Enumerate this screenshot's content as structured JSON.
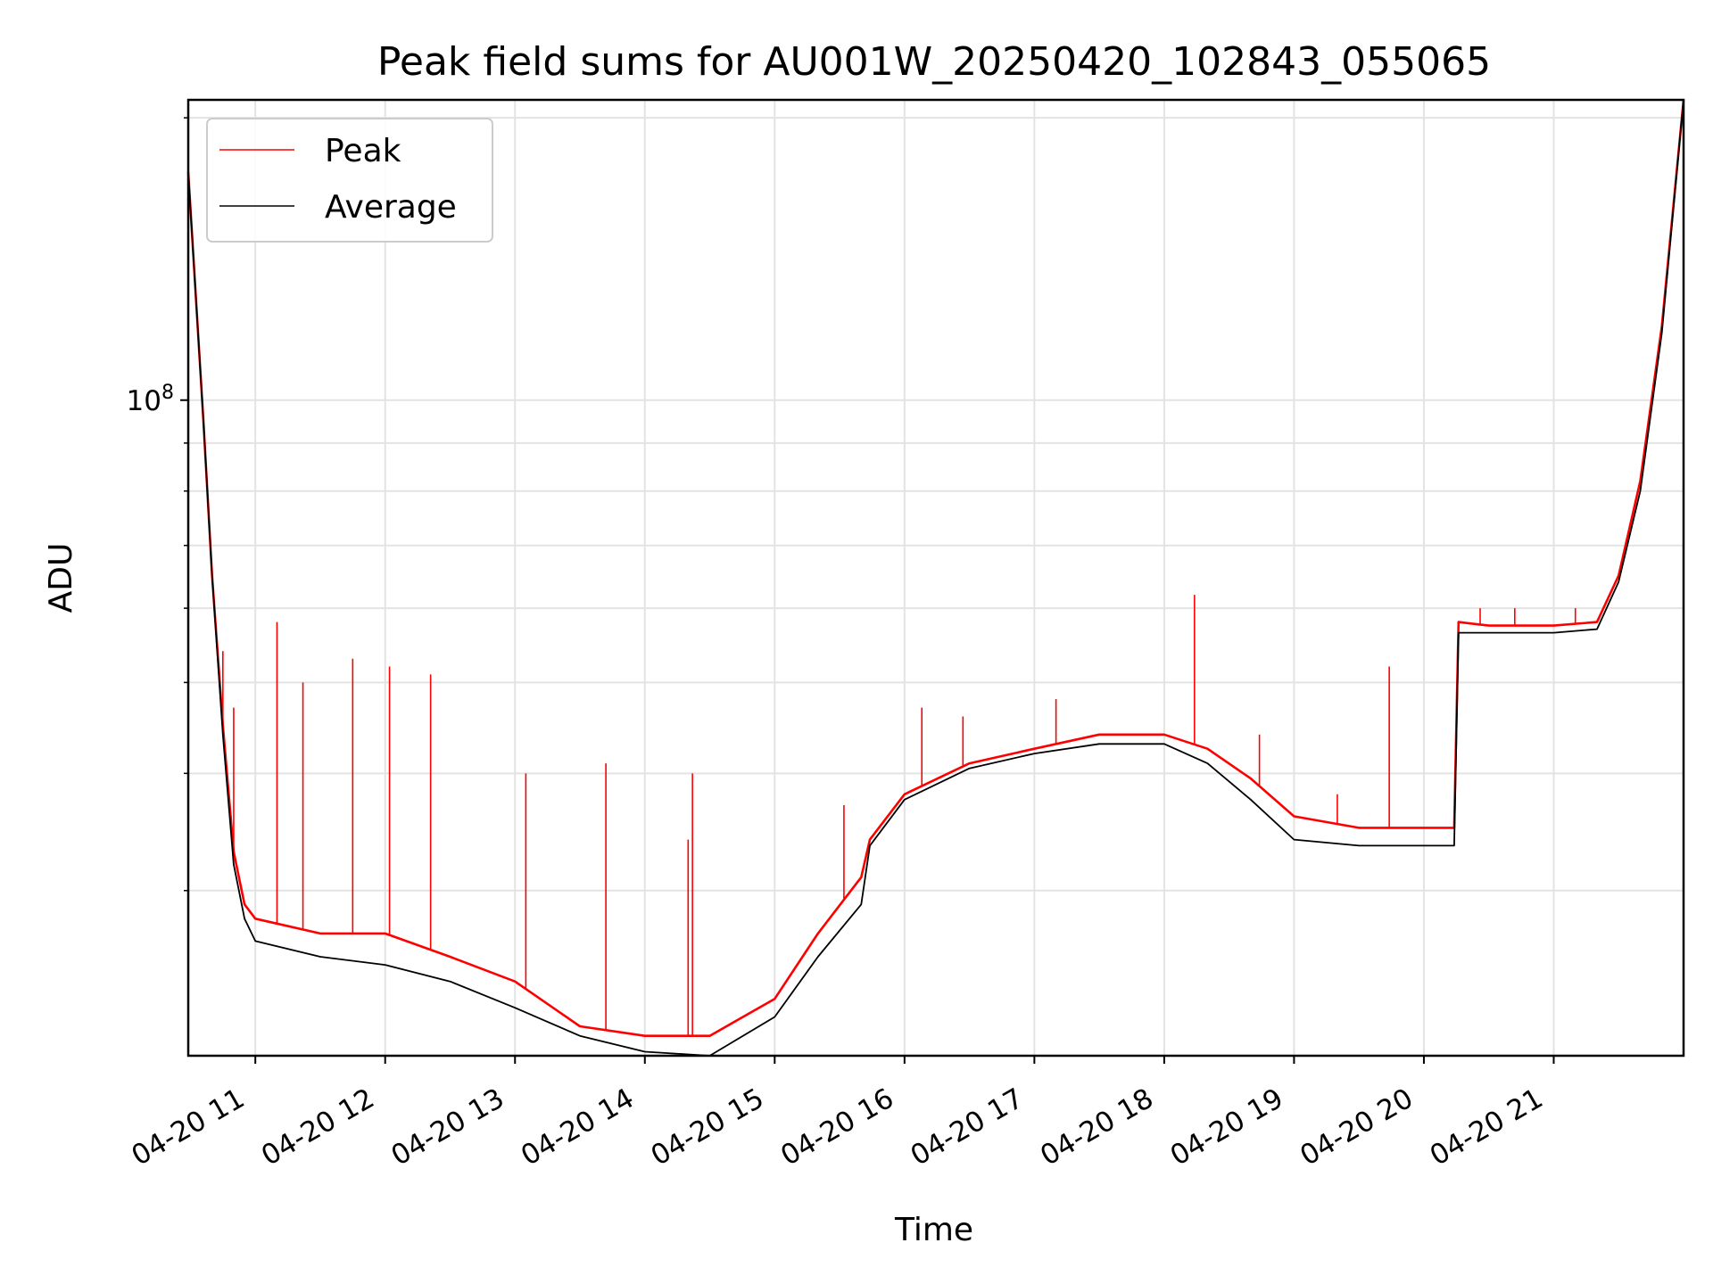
{
  "chart_data": {
    "type": "line",
    "title": "Peak field sums for AU001W_20250420_102843_055065",
    "xlabel": "Time",
    "ylabel": "ADU",
    "yscale": "log",
    "grid": true,
    "legend_position": "top-left",
    "xlim": [
      "2025-04-20 10:29",
      "2025-04-20 22:00"
    ],
    "ylim": [
      20000000,
      209000000
    ],
    "x_ticks": [
      "04-20 11",
      "04-20 12",
      "04-20 13",
      "04-20 14",
      "04-20 15",
      "04-20 16",
      "04-20 17",
      "04-20 18",
      "04-20 19",
      "04-20 20",
      "04-20 21"
    ],
    "y_ticks": [
      {
        "value": 100000000,
        "base": "10",
        "exponent": "8"
      }
    ],
    "series": [
      {
        "name": "Peak",
        "color": "#ff0000",
        "x": [
          "2025-04-20 10:29",
          "2025-04-20 10:36",
          "2025-04-20 10:40",
          "2025-04-20 10:45",
          "2025-04-20 10:50",
          "2025-04-20 10:55",
          "2025-04-20 11:00",
          "2025-04-20 11:30",
          "2025-04-20 12:00",
          "2025-04-20 12:30",
          "2025-04-20 13:00",
          "2025-04-20 13:30",
          "2025-04-20 14:00",
          "2025-04-20 14:30",
          "2025-04-20 15:00",
          "2025-04-20 15:20",
          "2025-04-20 15:40",
          "2025-04-20 15:44",
          "2025-04-20 16:00",
          "2025-04-20 16:30",
          "2025-04-20 17:00",
          "2025-04-20 17:30",
          "2025-04-20 18:00",
          "2025-04-20 18:20",
          "2025-04-20 18:40",
          "2025-04-20 19:00",
          "2025-04-20 19:30",
          "2025-04-20 20:14",
          "2025-04-20 20:16",
          "2025-04-20 20:30",
          "2025-04-20 21:00",
          "2025-04-20 21:20",
          "2025-04-20 21:30",
          "2025-04-20 21:40",
          "2025-04-20 21:50",
          "2025-04-20 22:00"
        ],
        "y": [
          175000000,
          95000000,
          65000000,
          45000000,
          33000000,
          29000000,
          28000000,
          27000000,
          27000000,
          25500000,
          24000000,
          21500000,
          21000000,
          21000000,
          23000000,
          27000000,
          31000000,
          34000000,
          38000000,
          41000000,
          42500000,
          44000000,
          44000000,
          42500000,
          39500000,
          36000000,
          35000000,
          35000000,
          58000000,
          57500000,
          57500000,
          58000000,
          65000000,
          82000000,
          120000000,
          209000000
        ]
      },
      {
        "name": "Average",
        "color": "#000000",
        "x": [
          "2025-04-20 10:29",
          "2025-04-20 10:36",
          "2025-04-20 10:40",
          "2025-04-20 10:45",
          "2025-04-20 10:50",
          "2025-04-20 10:55",
          "2025-04-20 11:00",
          "2025-04-20 11:30",
          "2025-04-20 12:00",
          "2025-04-20 12:30",
          "2025-04-20 13:00",
          "2025-04-20 13:30",
          "2025-04-20 14:00",
          "2025-04-20 14:30",
          "2025-04-20 15:00",
          "2025-04-20 15:20",
          "2025-04-20 15:40",
          "2025-04-20 15:44",
          "2025-04-20 16:00",
          "2025-04-20 16:30",
          "2025-04-20 17:00",
          "2025-04-20 17:30",
          "2025-04-20 18:00",
          "2025-04-20 18:20",
          "2025-04-20 18:40",
          "2025-04-20 19:00",
          "2025-04-20 19:30",
          "2025-04-20 20:14",
          "2025-04-20 20:16",
          "2025-04-20 20:30",
          "2025-04-20 21:00",
          "2025-04-20 21:20",
          "2025-04-20 21:30",
          "2025-04-20 21:40",
          "2025-04-20 21:50",
          "2025-04-20 22:00"
        ],
        "y": [
          175000000,
          95000000,
          65000000,
          44000000,
          32000000,
          28000000,
          26500000,
          25500000,
          25000000,
          24000000,
          22500000,
          21000000,
          20200000,
          20000000,
          22000000,
          25500000,
          29000000,
          33500000,
          37500000,
          40500000,
          42000000,
          43000000,
          43000000,
          41000000,
          37500000,
          34000000,
          33500000,
          33500000,
          56500000,
          56500000,
          56500000,
          57000000,
          64000000,
          80000000,
          118000000,
          209000000
        ]
      }
    ],
    "spikes": [
      {
        "x": "2025-04-20 10:45",
        "y": 54000000
      },
      {
        "x": "2025-04-20 10:50",
        "y": 47000000
      },
      {
        "x": "2025-04-20 11:10",
        "y": 58000000
      },
      {
        "x": "2025-04-20 11:22",
        "y": 50000000
      },
      {
        "x": "2025-04-20 11:45",
        "y": 53000000
      },
      {
        "x": "2025-04-20 12:02",
        "y": 52000000
      },
      {
        "x": "2025-04-20 12:21",
        "y": 51000000
      },
      {
        "x": "2025-04-20 13:05",
        "y": 40000000
      },
      {
        "x": "2025-04-20 13:42",
        "y": 41000000
      },
      {
        "x": "2025-04-20 14:20",
        "y": 34000000
      },
      {
        "x": "2025-04-20 14:22",
        "y": 40000000
      },
      {
        "x": "2025-04-20 15:32",
        "y": 37000000
      },
      {
        "x": "2025-04-20 16:08",
        "y": 47000000
      },
      {
        "x": "2025-04-20 16:27",
        "y": 46000000
      },
      {
        "x": "2025-04-20 17:10",
        "y": 48000000
      },
      {
        "x": "2025-04-20 18:14",
        "y": 62000000
      },
      {
        "x": "2025-04-20 18:44",
        "y": 44000000
      },
      {
        "x": "2025-04-20 19:20",
        "y": 38000000
      },
      {
        "x": "2025-04-20 19:44",
        "y": 52000000
      },
      {
        "x": "2025-04-20 20:26",
        "y": 60000000
      },
      {
        "x": "2025-04-20 20:42",
        "y": 60000000
      },
      {
        "x": "2025-04-20 21:10",
        "y": 60000000
      }
    ]
  }
}
